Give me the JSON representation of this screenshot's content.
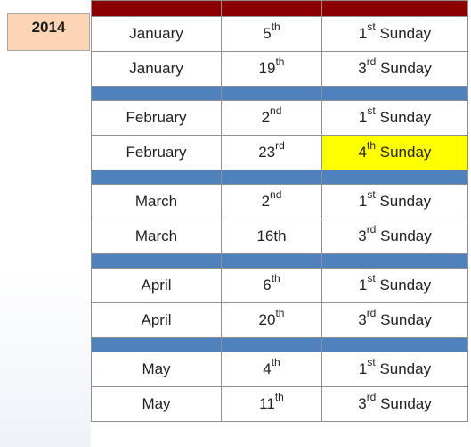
{
  "year": "2014",
  "colors": {
    "header_bar": "#8b0000",
    "separator_bar": "#4f81bd",
    "highlight": "#ffff00",
    "year_cell": "#fcd5b4"
  },
  "rows": [
    {
      "month": "January",
      "day": "5",
      "day_suffix": "th",
      "week": "1",
      "week_suffix": "st",
      "week_label": "Sunday",
      "highlighted": false
    },
    {
      "month": "January",
      "day": "19",
      "day_suffix": "th",
      "week": "3",
      "week_suffix": "rd",
      "week_label": "Sunday",
      "highlighted": false
    },
    {
      "month": "February",
      "day": "2",
      "day_suffix": "nd",
      "week": "1",
      "week_suffix": "st",
      "week_label": "Sunday",
      "highlighted": false
    },
    {
      "month": "February",
      "day": "23",
      "day_suffix": "rd",
      "week": "4",
      "week_suffix": "th",
      "week_label": "Sunday",
      "highlighted": true
    },
    {
      "month": "March",
      "day": "2",
      "day_suffix": "nd",
      "week": "1",
      "week_suffix": "st",
      "week_label": "Sunday",
      "highlighted": false
    },
    {
      "month": "March",
      "day": "16th",
      "day_suffix": "",
      "week": "3",
      "week_suffix": "rd",
      "week_label": "Sunday",
      "highlighted": false
    },
    {
      "month": "April",
      "day": "6",
      "day_suffix": "th",
      "week": "1",
      "week_suffix": "st",
      "week_label": "Sunday",
      "highlighted": false
    },
    {
      "month": "April",
      "day": "20",
      "day_suffix": "th",
      "week": "3",
      "week_suffix": "rd",
      "week_label": "Sunday",
      "highlighted": false
    },
    {
      "month": "May",
      "day": "4",
      "day_suffix": "th",
      "week": "1",
      "week_suffix": "st",
      "week_label": "Sunday",
      "highlighted": false
    },
    {
      "month": "May",
      "day": "11",
      "day_suffix": "th",
      "week": "3",
      "week_suffix": "rd",
      "week_label": "Sunday",
      "highlighted": false
    }
  ]
}
